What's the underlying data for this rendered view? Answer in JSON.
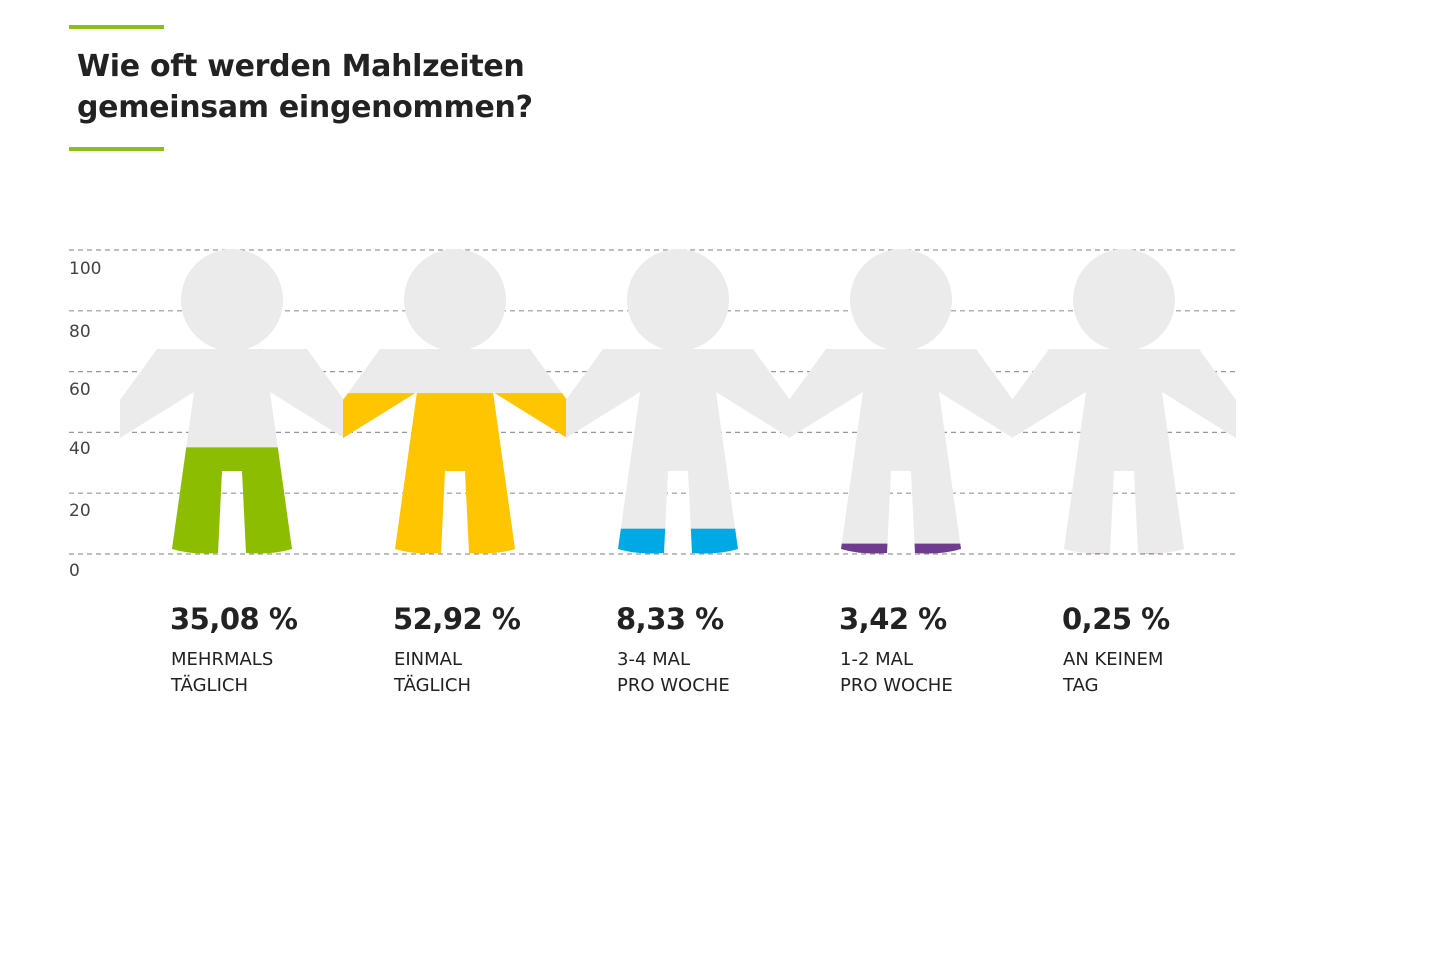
{
  "title_lines": [
    "Wie oft werden Mahlzeiten",
    "gemeinsam eingenommen?"
  ],
  "colors": {
    "accent": "#8cbd1f",
    "figure": "#ebebeb",
    "grid": "#999999",
    "series": [
      "#8cbd00",
      "#ffc500",
      "#00a9e6",
      "#6e3b8f",
      "#d40f4f"
    ]
  },
  "chart_data": {
    "type": "bar",
    "title": "Wie oft werden Mahlzeiten gemeinsam eingenommen?",
    "xlabel": "",
    "ylabel": "",
    "ylim": [
      0,
      100
    ],
    "yticks": [
      "0",
      "20",
      "40",
      "60",
      "80",
      "100"
    ],
    "grid": true,
    "categories": [
      [
        "MEHRMALS",
        "TÄGLICH"
      ],
      [
        "EINMAL",
        "TÄGLICH"
      ],
      [
        "3-4 MAL",
        "PRO WOCHE"
      ],
      [
        "1-2 MAL",
        "PRO WOCHE"
      ],
      [
        "AN KEINEM",
        "TAG"
      ]
    ],
    "values": [
      35.08,
      52.92,
      8.33,
      3.42,
      0.25
    ],
    "value_labels": [
      "35,08 %",
      "52,92 %",
      "8,33 %",
      "3,42 %",
      "0,25 %"
    ]
  }
}
